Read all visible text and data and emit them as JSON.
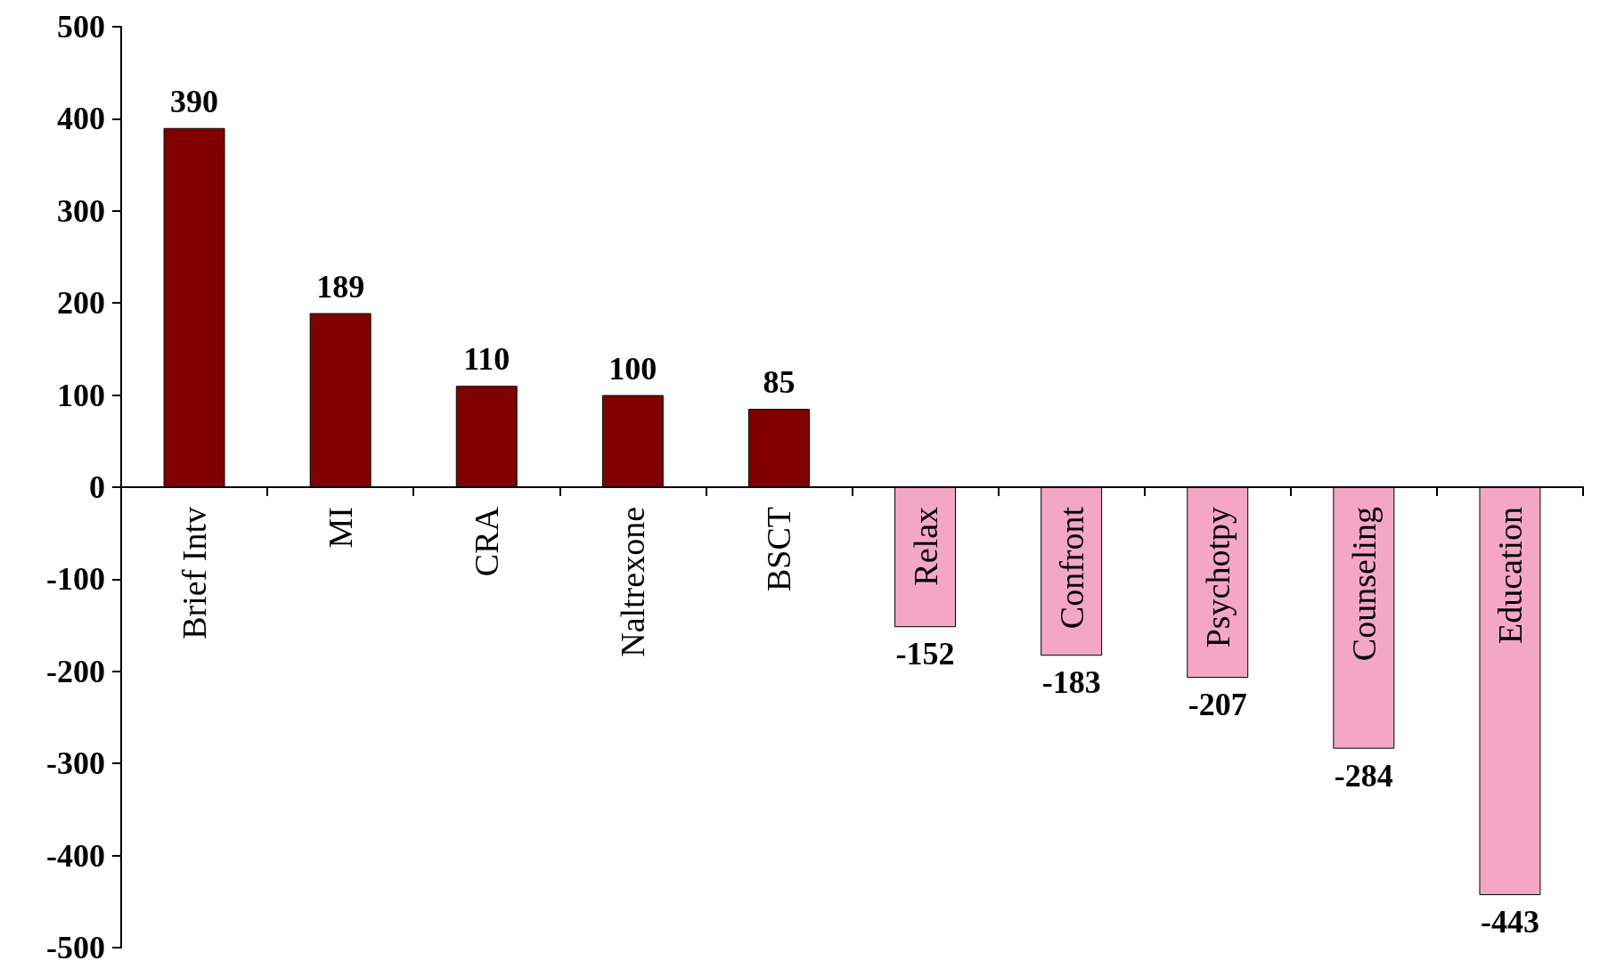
{
  "chart_data": {
    "type": "bar",
    "categories": [
      "Brief Intv",
      "MI",
      "CRA",
      "Naltrexone",
      "BSCT",
      "Relax",
      "Confront",
      "Psychotpy",
      "Counseling",
      "Education"
    ],
    "values": [
      390,
      189,
      110,
      100,
      85,
      -152,
      -183,
      -207,
      -284,
      -443
    ],
    "colors": [
      "#800000",
      "#800000",
      "#800000",
      "#800000",
      "#800000",
      "#f4a7c4",
      "#f4a7c4",
      "#f4a7c4",
      "#f4a7c4",
      "#f4a7c4"
    ],
    "ylim": [
      -500,
      500
    ],
    "yticks": [
      -500,
      -400,
      -300,
      -200,
      -100,
      0,
      100,
      200,
      300,
      400,
      500
    ],
    "data_labels": true,
    "grid": false
  }
}
